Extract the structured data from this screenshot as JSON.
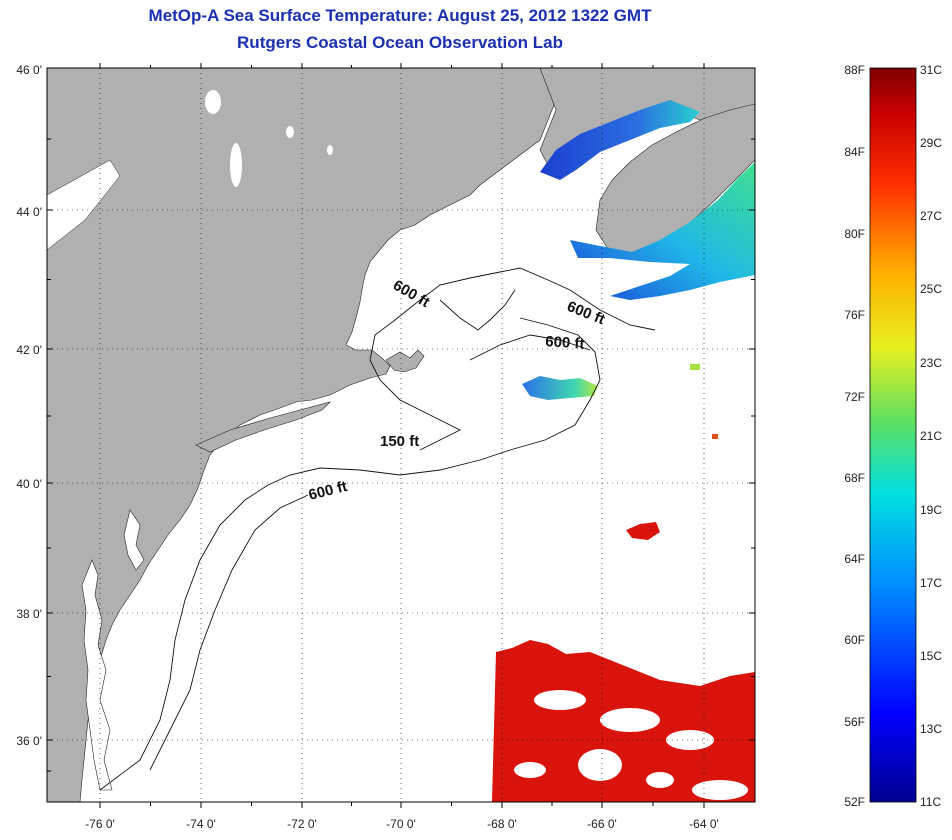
{
  "title_line1": "MetOp-A Sea Surface Temperature:  August 25, 2012 1322 GMT",
  "title_line2": "Rutgers Coastal Ocean Observation Lab",
  "lat_labels": [
    "46 0'",
    "44 0'",
    "42 0'",
    "40 0'",
    "38 0'",
    "36 0'"
  ],
  "lon_labels": [
    "-76 0'",
    "-74 0'",
    "-72 0'",
    "-70 0'",
    "-68 0'",
    "-66 0'",
    "-64 0'"
  ],
  "isobath_labels": [
    "600 ft",
    "600 ft",
    "600 ft",
    "150 ft",
    "600 ft"
  ],
  "colorbar": {
    "fahrenheit": [
      "88F",
      "84F",
      "80F",
      "76F",
      "72F",
      "68F",
      "64F",
      "60F",
      "56F",
      "52F"
    ],
    "celsius": [
      "31C",
      "29C",
      "27C",
      "25C",
      "23C",
      "21C",
      "19C",
      "17C",
      "15C",
      "13C",
      "11C"
    ]
  },
  "colors": {
    "title": "#1b2fb3",
    "land": "#b0b0b0",
    "ocean": "#ffffff",
    "warm": "#d8140c",
    "cold": "#1a38c8"
  }
}
